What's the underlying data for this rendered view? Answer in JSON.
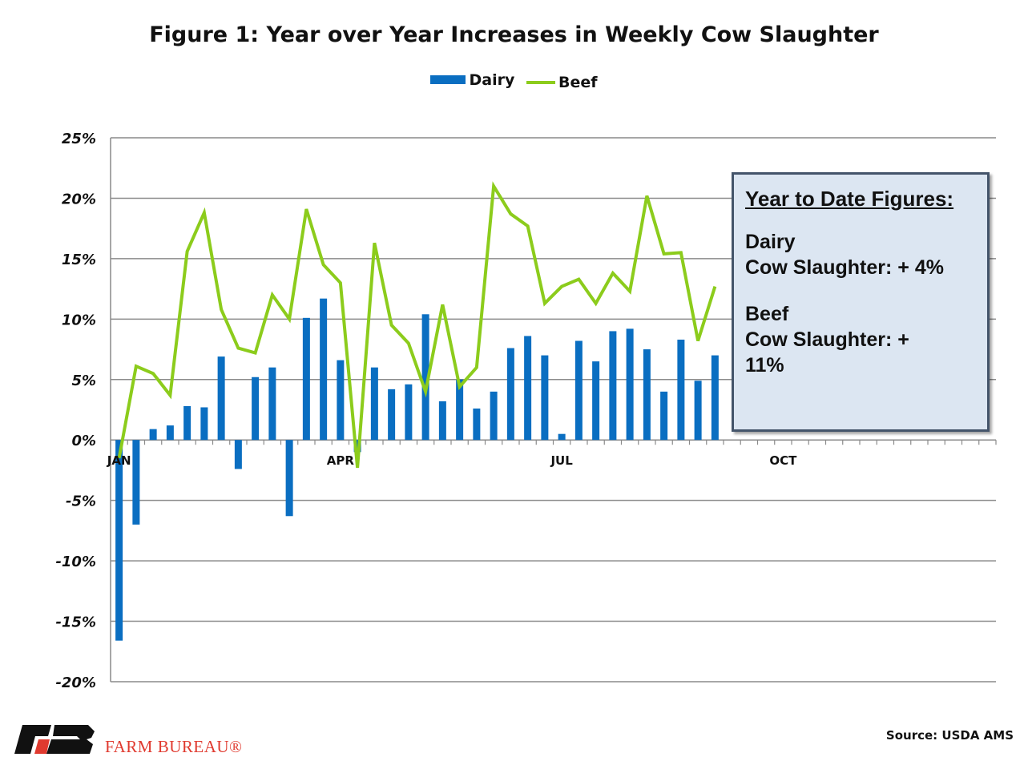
{
  "chart_data": {
    "type": "bar+line",
    "title": "Figure 1: Year over Year Increases in Weekly Cow Slaughter",
    "legend_position": "top",
    "ylim": [
      -20,
      25
    ],
    "yticks": [
      "-20%",
      "-15%",
      "-10%",
      "-5%",
      "0%",
      "5%",
      "10%",
      "15%",
      "20%",
      "25%"
    ],
    "ytick_values": [
      -20,
      -15,
      -10,
      -5,
      0,
      5,
      10,
      15,
      20,
      25
    ],
    "grid": true,
    "weeks_on_axis": 52,
    "month_labels": [
      {
        "label": "JAN",
        "week": 1
      },
      {
        "label": "APR",
        "week": 14
      },
      {
        "label": "JUL",
        "week": 27
      },
      {
        "label": "OCT",
        "week": 40
      }
    ],
    "series": [
      {
        "name": "Dairy",
        "type": "bar",
        "color": "#0a6ec1",
        "values": [
          -16.6,
          -7.0,
          0.9,
          1.2,
          2.8,
          2.7,
          6.9,
          -2.4,
          5.2,
          6.0,
          -6.3,
          10.1,
          11.7,
          6.6,
          -1.0,
          6.0,
          4.2,
          4.6,
          10.4,
          3.2,
          5.0,
          2.6,
          4.0,
          7.6,
          8.6,
          7.0,
          0.5,
          8.2,
          6.5,
          9.0,
          9.2,
          7.5,
          4.0,
          8.3,
          4.9,
          7.0
        ]
      },
      {
        "name": "Beef",
        "type": "line",
        "color": "#8ccc1c",
        "values": [
          -1.5,
          6.1,
          5.5,
          3.7,
          15.6,
          18.8,
          10.8,
          7.6,
          7.2,
          12.0,
          10.0,
          19.1,
          14.5,
          13.0,
          -2.3,
          16.3,
          9.5,
          8.0,
          4.0,
          11.2,
          4.4,
          6.0,
          21.0,
          18.7,
          17.7,
          11.3,
          12.7,
          13.3,
          11.3,
          13.8,
          12.3,
          20.2,
          15.4,
          15.5,
          8.2,
          12.7
        ]
      }
    ]
  },
  "ytd_box": {
    "heading": "Year to Date Figures:",
    "dairy_label": "Dairy",
    "dairy_value": "Cow Slaughter: + 4%",
    "beef_label": "Beef",
    "beef_value": "Cow Slaughter: + 11%"
  },
  "source": "Source: USDA AMS",
  "logo_text": "FARM BUREAU®"
}
